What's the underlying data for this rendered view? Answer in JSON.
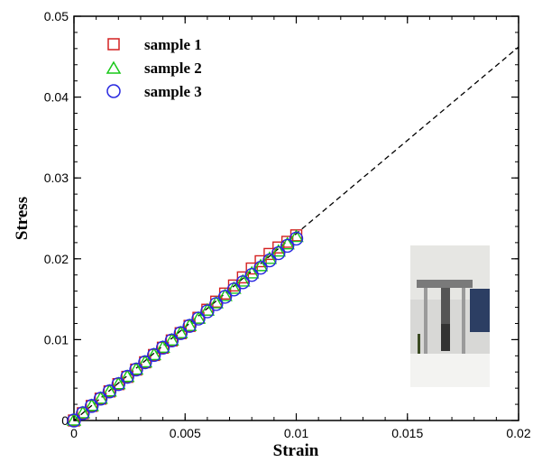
{
  "chart_data": {
    "type": "scatter",
    "xlabel": "Strain",
    "ylabel": "Stress",
    "xlim": [
      0,
      0.02
    ],
    "ylim": [
      0,
      0.05
    ],
    "x_ticks": [
      "0",
      "0.005",
      "0.01",
      "0.015",
      "0.02"
    ],
    "y_ticks": [
      "0",
      "0.01",
      "0.02",
      "0.03",
      "0.04",
      "0.05"
    ],
    "legend_position": "top-left",
    "grid": false,
    "series": [
      {
        "name": "sample 1",
        "marker": "square",
        "color": "#d42020",
        "x": [
          0,
          0.0004,
          0.0008,
          0.0012,
          0.0016,
          0.002,
          0.0024,
          0.0028,
          0.0032,
          0.0036,
          0.004,
          0.0044,
          0.0048,
          0.0052,
          0.0056,
          0.006,
          0.0064,
          0.0068,
          0.0072,
          0.0076,
          0.008,
          0.0084,
          0.0088,
          0.0092,
          0.0096,
          0.01
        ],
        "y": [
          0,
          0.0009,
          0.0018,
          0.0027,
          0.0036,
          0.0045,
          0.0054,
          0.0063,
          0.0072,
          0.0081,
          0.009,
          0.0099,
          0.0108,
          0.0117,
          0.0127,
          0.0137,
          0.0147,
          0.0157,
          0.0167,
          0.0177,
          0.0188,
          0.0197,
          0.0206,
          0.0214,
          0.0221,
          0.0229
        ]
      },
      {
        "name": "sample 2",
        "marker": "triangle",
        "color": "#18c818",
        "x": [
          0,
          0.0004,
          0.0008,
          0.0012,
          0.0016,
          0.002,
          0.0024,
          0.0028,
          0.0032,
          0.0036,
          0.004,
          0.0044,
          0.0048,
          0.0052,
          0.0056,
          0.006,
          0.0064,
          0.0068,
          0.0072,
          0.0076,
          0.008,
          0.0084,
          0.0088,
          0.0092,
          0.0096,
          0.01
        ],
        "y": [
          0,
          0.0009,
          0.0018,
          0.0027,
          0.0036,
          0.0045,
          0.0054,
          0.0063,
          0.0072,
          0.0081,
          0.009,
          0.0099,
          0.0108,
          0.0117,
          0.0126,
          0.0136,
          0.0145,
          0.0154,
          0.0163,
          0.0172,
          0.0182,
          0.0191,
          0.02,
          0.0209,
          0.0218,
          0.0227
        ]
      },
      {
        "name": "sample 3",
        "marker": "circle",
        "color": "#2828e0",
        "x": [
          0,
          0.0004,
          0.0008,
          0.0012,
          0.0016,
          0.002,
          0.0024,
          0.0028,
          0.0032,
          0.0036,
          0.004,
          0.0044,
          0.0048,
          0.0052,
          0.0056,
          0.006,
          0.0064,
          0.0068,
          0.0072,
          0.0076,
          0.008,
          0.0084,
          0.0088,
          0.0092,
          0.0096,
          0.01
        ],
        "y": [
          0,
          0.0009,
          0.0018,
          0.0027,
          0.0036,
          0.0045,
          0.0054,
          0.0063,
          0.0072,
          0.0081,
          0.009,
          0.0099,
          0.0108,
          0.0117,
          0.0126,
          0.0135,
          0.0144,
          0.0153,
          0.0162,
          0.0171,
          0.018,
          0.0189,
          0.0198,
          0.0207,
          0.0216,
          0.0225
        ]
      }
    ],
    "fit_line": {
      "style": "dashed",
      "color": "#000000",
      "x": [
        0,
        0.02
      ],
      "y": [
        0,
        0.0462
      ]
    },
    "inset_image": "photo of tensile testing machine with specimen"
  }
}
